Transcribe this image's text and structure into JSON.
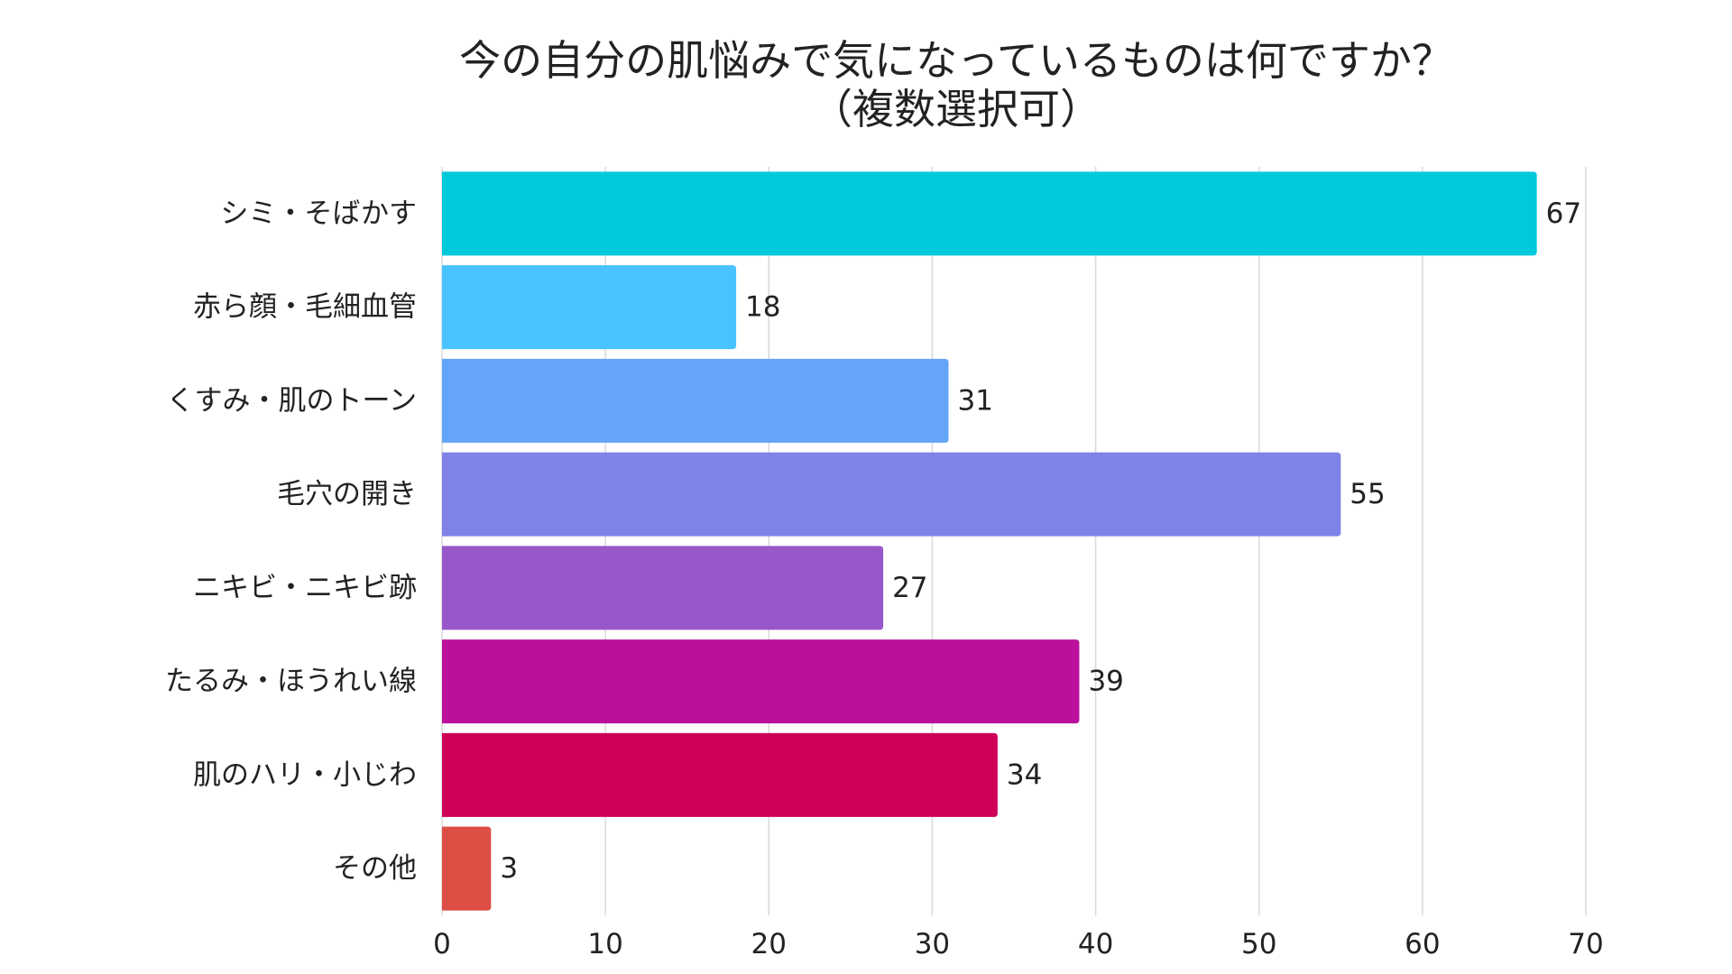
{
  "chart_data": {
    "type": "bar",
    "orientation": "horizontal",
    "title": "今の自分の肌悩みで気になっているものは何ですか？",
    "subtitle": "（複数選択可）",
    "categories": [
      "シミ・そばかす",
      "赤ら顔・毛細血管",
      "くすみ・肌のトーン",
      "毛穴の開き",
      "ニキビ・ニキビ跡",
      "たるみ・ほうれい線",
      "肌のハリ・小じわ",
      "その他"
    ],
    "values": [
      67,
      18,
      31,
      55,
      27,
      39,
      34,
      3
    ],
    "colors": [
      "#00c9db",
      "#48c3ff",
      "#64a5fa",
      "#7f82e6",
      "#9958ca",
      "#bb109c",
      "#cf0058",
      "#dd4e44"
    ],
    "xlim": [
      0,
      70
    ],
    "xticks": [
      0,
      10,
      20,
      30,
      40,
      50,
      60,
      70
    ],
    "grid": "vertical",
    "data_labels": true,
    "legend": "none",
    "xlabel": "",
    "ylabel": ""
  }
}
